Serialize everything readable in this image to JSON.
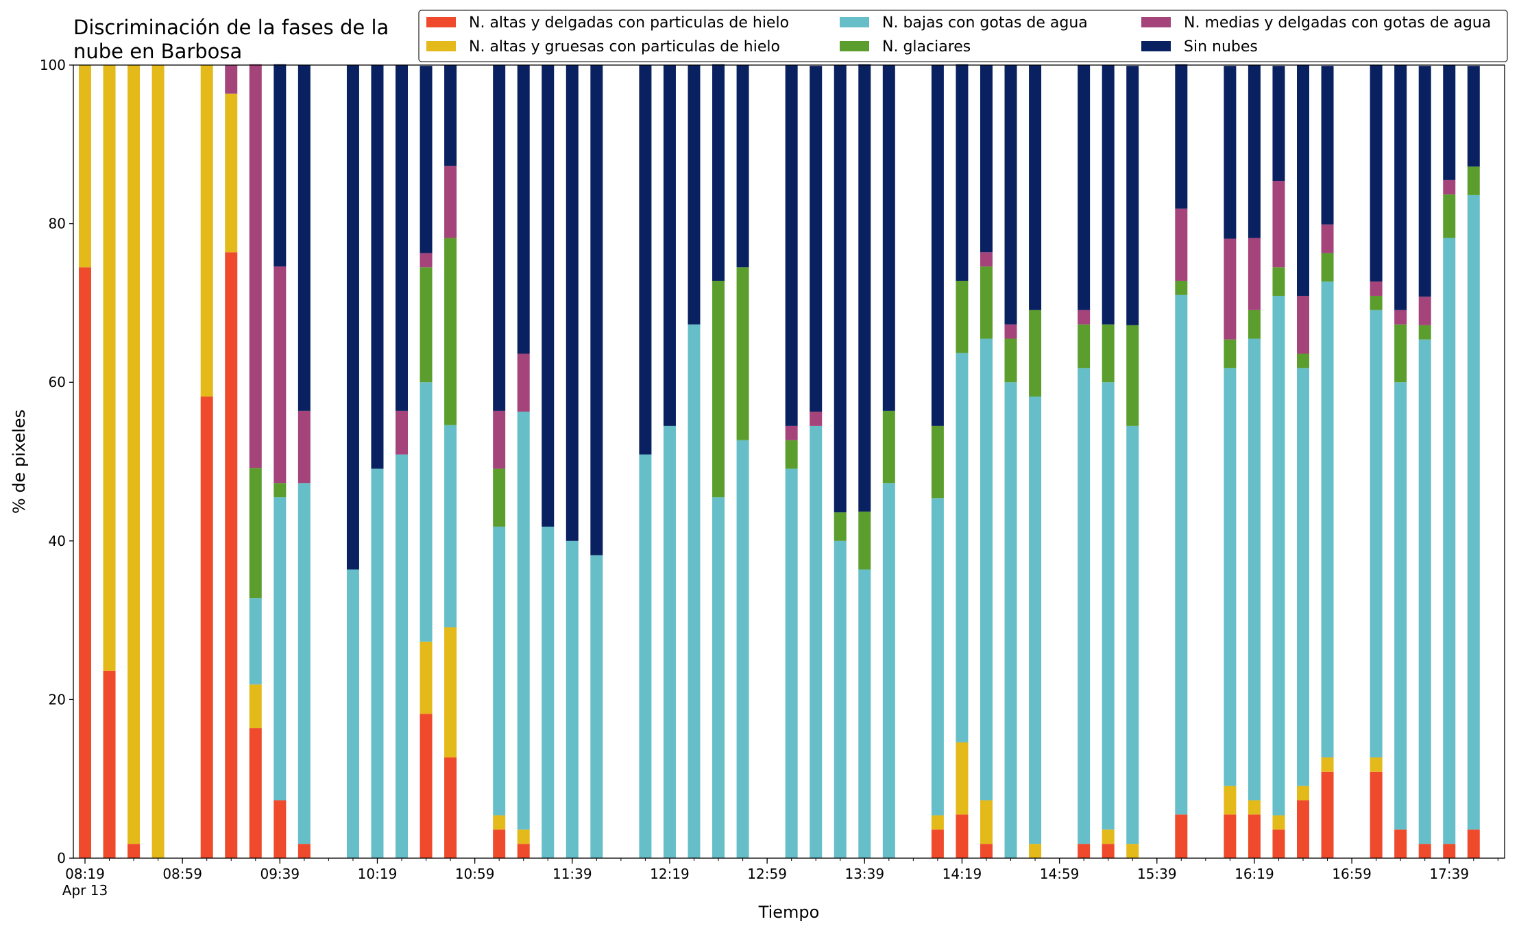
{
  "chart_data": {
    "type": "bar",
    "stacked": true,
    "title_lines": [
      "Discriminación de la fases de la",
      "nube en Barbosa"
    ],
    "xlabel": "Tiempo",
    "ylabel": "% de pixeles",
    "ylim": [
      0,
      100
    ],
    "yticks": [
      0,
      20,
      40,
      60,
      80,
      100
    ],
    "xlim": [
      0,
      58
    ],
    "date_label": "Apr 13",
    "xtick_labels": [
      {
        "x": 0,
        "label": "08:19"
      },
      {
        "x": 4,
        "label": "08:59"
      },
      {
        "x": 8,
        "label": "09:39"
      },
      {
        "x": 12,
        "label": "10:19"
      },
      {
        "x": 16,
        "label": "10:59"
      },
      {
        "x": 20,
        "label": "11:39"
      },
      {
        "x": 24,
        "label": "12:19"
      },
      {
        "x": 28,
        "label": "12:59"
      },
      {
        "x": 32,
        "label": "13:39"
      },
      {
        "x": 36,
        "label": "14:19"
      },
      {
        "x": 40,
        "label": "14:59"
      },
      {
        "x": 44,
        "label": "15:39"
      },
      {
        "x": 48,
        "label": "16:19"
      },
      {
        "x": 52,
        "label": "16:59"
      },
      {
        "x": 56,
        "label": "17:39"
      }
    ],
    "grid": false,
    "legend_position": "top-right",
    "legend_columns": 3,
    "legend_order": [
      0,
      1,
      2,
      3,
      4,
      5
    ],
    "bar_x": [
      0,
      1,
      2,
      3,
      5,
      6,
      7,
      8,
      9,
      11,
      12,
      13,
      14,
      15,
      17,
      18,
      19,
      20,
      21,
      23,
      24,
      25,
      26,
      27,
      29,
      30,
      31,
      32,
      33,
      35,
      36,
      37,
      38,
      39,
      41,
      42,
      43,
      45,
      47,
      48,
      49,
      50,
      51,
      53,
      54,
      55,
      56,
      57
    ],
    "series": [
      {
        "name": "N. altas y delgadas con particulas de hielo",
        "color": "#ef4a2c",
        "values": [
          74.5,
          23.6,
          1.8,
          0,
          58.2,
          76.4,
          16.4,
          7.3,
          1.8,
          0,
          0,
          0,
          18.2,
          12.7,
          3.6,
          1.8,
          0,
          0,
          0,
          0,
          0,
          0,
          0,
          0,
          0,
          0,
          0,
          0,
          0,
          3.6,
          5.5,
          1.8,
          0,
          0,
          1.8,
          1.8,
          0,
          5.5,
          5.5,
          5.5,
          3.6,
          7.3,
          10.9,
          10.9,
          3.6,
          1.8,
          1.8,
          3.6
        ]
      },
      {
        "name": "N. altas y gruesas con particulas de hielo",
        "color": "#e4b91a",
        "values": [
          25.5,
          76.4,
          98.2,
          100,
          41.8,
          20.0,
          5.5,
          0,
          0,
          0,
          0,
          0,
          9.1,
          16.4,
          1.8,
          1.8,
          0,
          0,
          0,
          0,
          0,
          0,
          0,
          0,
          0,
          0,
          0,
          0,
          0,
          1.8,
          9.1,
          5.5,
          0,
          1.8,
          0,
          1.8,
          1.8,
          0,
          3.6,
          1.8,
          1.8,
          1.8,
          1.8,
          1.8,
          0,
          0,
          0,
          0
        ]
      },
      {
        "name": "N. bajas con gotas de agua",
        "color": "#66bec9",
        "values": [
          0,
          0,
          0,
          0,
          0,
          0,
          10.9,
          38.2,
          45.5,
          36.4,
          49.1,
          50.9,
          32.7,
          25.5,
          36.4,
          52.7,
          41.8,
          40.0,
          38.2,
          50.9,
          54.5,
          67.3,
          45.5,
          52.7,
          49.1,
          54.5,
          40.0,
          36.4,
          47.3,
          40.0,
          49.1,
          58.2,
          60.0,
          56.4,
          60.0,
          56.4,
          52.7,
          65.5,
          52.7,
          58.2,
          65.5,
          52.7,
          60.0,
          56.4,
          56.4,
          63.6,
          76.4,
          80.0
        ]
      },
      {
        "name": "N. glaciares",
        "color": "#5c9e2e",
        "values": [
          0,
          0,
          0,
          0,
          0,
          0,
          16.4,
          1.8,
          0,
          0,
          0,
          0,
          14.5,
          23.6,
          7.3,
          0,
          0,
          0,
          0,
          0,
          0,
          0,
          27.3,
          21.8,
          3.6,
          0,
          3.6,
          7.3,
          9.1,
          9.1,
          9.1,
          9.1,
          5.5,
          10.9,
          5.5,
          7.3,
          12.7,
          1.8,
          3.6,
          3.6,
          3.6,
          1.8,
          3.6,
          1.8,
          7.3,
          1.8,
          5.5,
          3.6
        ]
      },
      {
        "name": "N. medias y delgadas con gotas de agua",
        "color": "#a4447a",
        "values": [
          0,
          0,
          0,
          0,
          0,
          3.6,
          50.9,
          27.3,
          9.1,
          0,
          0,
          5.5,
          1.8,
          9.1,
          7.3,
          7.3,
          0,
          0,
          0,
          0,
          0,
          0,
          0,
          0,
          1.8,
          1.8,
          0,
          0,
          0,
          0,
          0,
          1.8,
          1.8,
          0,
          1.8,
          0,
          0,
          9.1,
          12.7,
          9.1,
          10.9,
          7.3,
          3.6,
          1.8,
          1.8,
          3.6,
          1.8,
          0
        ]
      },
      {
        "name": "Sin nubes",
        "color": "#0a2161",
        "values": [
          0,
          0,
          0,
          0,
          0,
          0,
          0,
          25.5,
          43.6,
          63.6,
          50.9,
          43.6,
          23.6,
          12.7,
          43.6,
          36.4,
          58.2,
          60.0,
          61.8,
          49.1,
          45.5,
          32.7,
          27.3,
          25.5,
          45.5,
          43.6,
          56.4,
          56.4,
          43.6,
          45.5,
          27.3,
          23.6,
          32.7,
          30.9,
          30.9,
          32.7,
          32.7,
          18.2,
          21.8,
          21.8,
          14.5,
          29.1,
          20.0,
          27.3,
          30.9,
          29.1,
          14.5,
          12.7
        ]
      }
    ]
  }
}
